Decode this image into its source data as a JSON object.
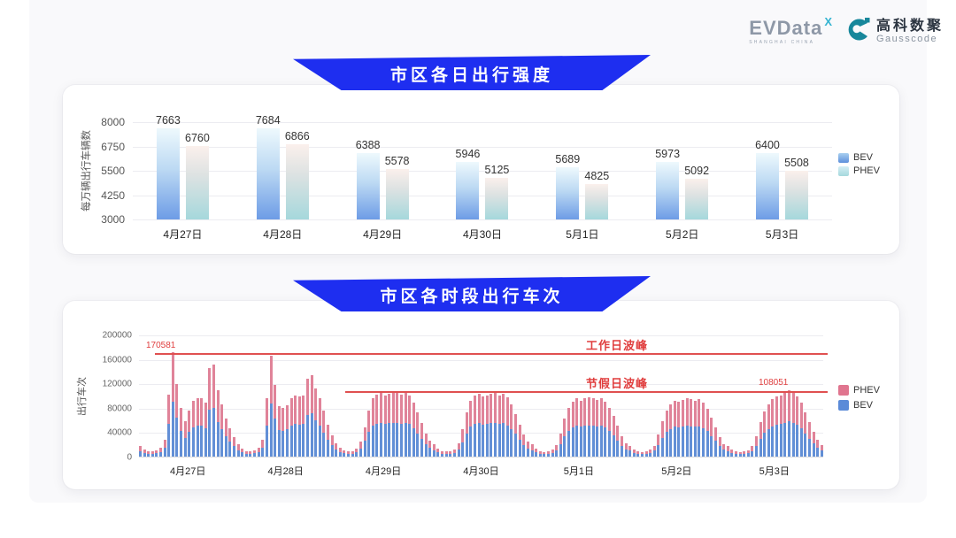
{
  "brand": {
    "evdata_wordmark": "EVData",
    "evdata_x": "X",
    "evdata_sub": "SHANGHAI CHINA",
    "gausscode_cn": "高科数聚",
    "gausscode_en": "Gausscode"
  },
  "colors": {
    "banner_blue": "#1e2ef0",
    "bev_gradient_top": "#eef9fd",
    "bev_gradient_bottom": "#6d9ce6",
    "phev_gradient_top": "#fbf0ec",
    "phev_gradient_bottom": "#a5d8dc",
    "stack_bev_blue": "#628fd6",
    "stack_phev_pink": "#e08399",
    "annotation_red": "#e03e3e",
    "gausscode_teal": "#17879b"
  },
  "chart_data": [
    {
      "type": "bar",
      "title": "市区各日出行强度",
      "ylabel": "每万辆出行车辆数",
      "categories": [
        "4月27日",
        "4月28日",
        "4月29日",
        "4月30日",
        "5月1日",
        "5月2日",
        "5月3日"
      ],
      "series": [
        {
          "name": "BEV",
          "values": [
            7663,
            7684,
            6388,
            5946,
            5689,
            5973,
            6400
          ]
        },
        {
          "name": "PHEV",
          "values": [
            6760,
            6866,
            5578,
            5125,
            4825,
            5092,
            5508
          ]
        }
      ],
      "yticks": [
        8000,
        6750,
        5500,
        4250,
        3000
      ],
      "ylim": [
        3000,
        8000
      ],
      "grid": true,
      "legend": [
        "BEV",
        "PHEV"
      ],
      "legend_position": "right"
    },
    {
      "type": "stacked_bar",
      "title": "市区各时段出行车次",
      "ylabel": "出行车次",
      "yticks": [
        200000,
        160000,
        120000,
        80000,
        40000,
        0
      ],
      "ylim": [
        0,
        200000
      ],
      "grid": true,
      "legend": [
        "PHEV",
        "BEV"
      ],
      "legend_position": "right",
      "bev_share": 0.53,
      "hours_per_day": 24,
      "days": [
        {
          "date": "4月27日",
          "totals": [
            17000,
            12000,
            9000,
            8000,
            10000,
            15000,
            27000,
            101000,
            170581,
            119000,
            80000,
            58000,
            76000,
            91000,
            95000,
            96000,
            88000,
            145000,
            150000,
            108000,
            85000,
            62000,
            47000,
            32000
          ]
        },
        {
          "date": "4月28日",
          "totals": [
            20000,
            13000,
            9000,
            8000,
            10000,
            15000,
            28000,
            95000,
            165000,
            117000,
            82000,
            80000,
            84000,
            96000,
            100000,
            98000,
            100000,
            128000,
            134000,
            112000,
            95000,
            75000,
            52000,
            35000
          ]
        },
        {
          "date": "4月29日",
          "totals": [
            22000,
            14000,
            10000,
            8000,
            9000,
            13000,
            24000,
            48000,
            76000,
            95000,
            102000,
            105000,
            100000,
            103000,
            105000,
            104000,
            102000,
            105000,
            100000,
            88000,
            72000,
            55000,
            38000,
            26000
          ]
        },
        {
          "date": "4月30日",
          "totals": [
            20000,
            13000,
            9000,
            8000,
            9000,
            12000,
            22000,
            45000,
            72000,
            92000,
            100000,
            103000,
            98000,
            100000,
            103000,
            105000,
            100000,
            103000,
            97000,
            85000,
            70000,
            52000,
            36000,
            24000
          ]
        },
        {
          "date": "5月1日",
          "totals": [
            20000,
            13000,
            9000,
            7000,
            8000,
            11000,
            19000,
            38000,
            62000,
            80000,
            90000,
            95000,
            92000,
            95000,
            97000,
            95000,
            93000,
            95000,
            90000,
            80000,
            66000,
            50000,
            34000,
            22000
          ]
        },
        {
          "date": "5月2日",
          "totals": [
            18000,
            12000,
            8000,
            7000,
            8000,
            11000,
            18000,
            36000,
            58000,
            76000,
            86000,
            92000,
            90000,
            93000,
            96000,
            94000,
            92000,
            94000,
            88000,
            78000,
            64000,
            48000,
            32000,
            21000
          ]
        },
        {
          "date": "5月3日",
          "totals": [
            17000,
            11000,
            8000,
            7000,
            8000,
            10000,
            17000,
            34000,
            56000,
            74000,
            86000,
            94000,
            98000,
            100000,
            104000,
            108051,
            104000,
            98000,
            88000,
            72000,
            56000,
            40000,
            28000,
            19000
          ]
        }
      ],
      "annotations": {
        "workday_peak_label": "工作日波峰",
        "workday_peak_value": 170581,
        "workday_peak_value_label": "170581",
        "holiday_peak_label": "节假日波峰",
        "holiday_peak_value": 108051,
        "holiday_peak_value_label": "108051"
      }
    }
  ]
}
